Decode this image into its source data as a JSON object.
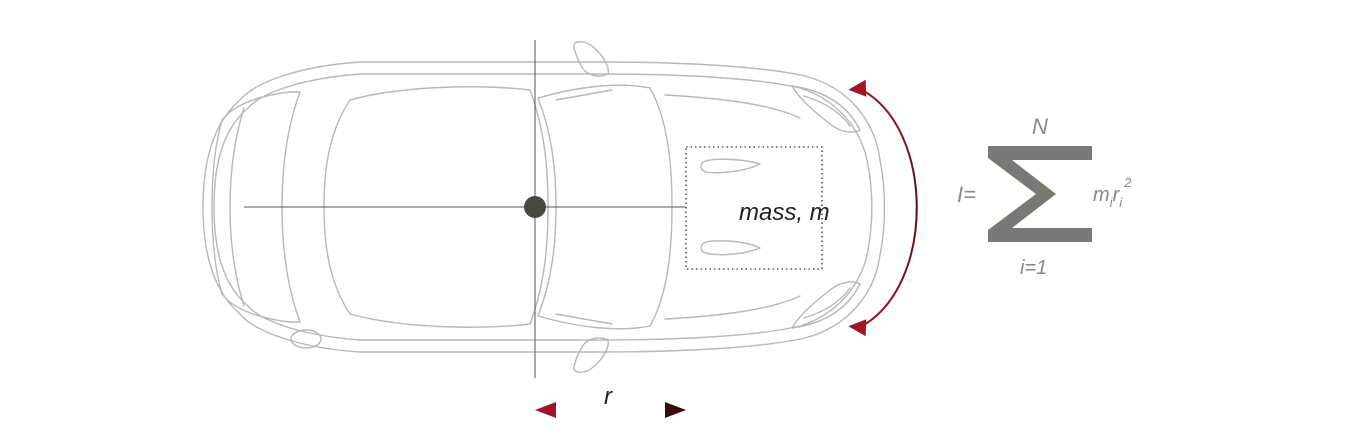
{
  "labels": {
    "mass": "mass, m",
    "radius": "r",
    "formula_lhs": "I=",
    "sum_upper": "N",
    "sum_lower": "i=1",
    "term_m": "m",
    "term_m_sub": "i",
    "term_r": "r",
    "term_r_sub": "i",
    "term_exp": "2"
  },
  "colors": {
    "outline": "#b8b8b8",
    "axis": "#555555",
    "center_dot": "#4a4845",
    "arrow_dark": "#5a0d12",
    "arrow_red": "#a01428",
    "sigma": "#7a7873",
    "formula_text": "#8c8a86",
    "mass_box": "#555555"
  },
  "icons": [
    "car-top-view-icon",
    "rotation-arrow-icon",
    "radius-arrow-icon",
    "summation-icon"
  ]
}
